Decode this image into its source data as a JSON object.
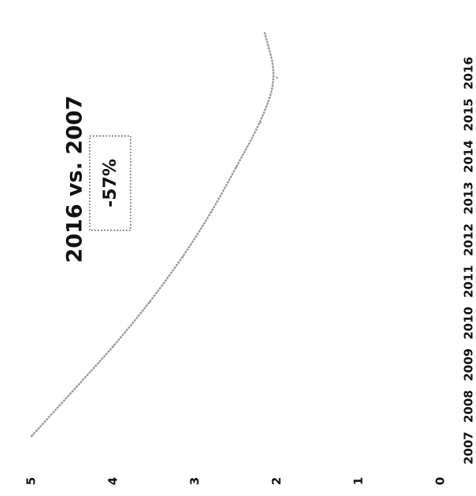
{
  "chart_data": {
    "type": "line",
    "orientation": "rotated 90 degrees clockwise",
    "x": [
      "2007",
      "2008",
      "2009",
      "2010",
      "2011",
      "2012",
      "2013",
      "2014",
      "2015",
      "2016"
    ],
    "series": [
      {
        "values": [
          5.0,
          4.5,
          4.0,
          3.55,
          3.15,
          2.8,
          2.5,
          2.2,
          2.0,
          2.15
        ]
      }
    ],
    "ylim": [
      0,
      5
    ],
    "yticks": [
      "0",
      "1",
      "2",
      "3",
      "4",
      "5"
    ],
    "title": "",
    "xlabel": "",
    "ylabel": "",
    "grid": false,
    "line_color": "#9a9a9a",
    "annotation": {
      "title": "2016 vs. 2007",
      "value": "-57%"
    }
  }
}
